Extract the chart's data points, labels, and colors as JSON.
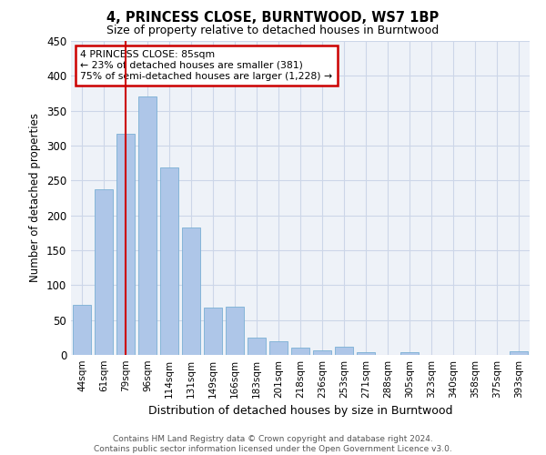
{
  "title1": "4, PRINCESS CLOSE, BURNTWOOD, WS7 1BP",
  "title2": "Size of property relative to detached houses in Burntwood",
  "xlabel": "Distribution of detached houses by size in Burntwood",
  "ylabel": "Number of detached properties",
  "categories": [
    "44sqm",
    "61sqm",
    "79sqm",
    "96sqm",
    "114sqm",
    "131sqm",
    "149sqm",
    "166sqm",
    "183sqm",
    "201sqm",
    "218sqm",
    "236sqm",
    "253sqm",
    "271sqm",
    "288sqm",
    "305sqm",
    "323sqm",
    "340sqm",
    "358sqm",
    "375sqm",
    "393sqm"
  ],
  "values": [
    72,
    237,
    317,
    370,
    269,
    182,
    68,
    69,
    25,
    20,
    11,
    6,
    12,
    4,
    0,
    4,
    0,
    0,
    0,
    0,
    5
  ],
  "bar_color": "#aec6e8",
  "bar_edge_color": "#7aafd4",
  "grid_color": "#ccd6e8",
  "background_color": "#eef2f8",
  "vline_x": 2,
  "vline_color": "#cc0000",
  "annotation_line1": "4 PRINCESS CLOSE: 85sqm",
  "annotation_line2": "← 23% of detached houses are smaller (381)",
  "annotation_line3": "75% of semi-detached houses are larger (1,228) →",
  "annotation_box_color": "#cc0000",
  "footer": "Contains HM Land Registry data © Crown copyright and database right 2024.\nContains public sector information licensed under the Open Government Licence v3.0.",
  "ylim": [
    0,
    450
  ],
  "yticks": [
    0,
    50,
    100,
    150,
    200,
    250,
    300,
    350,
    400,
    450
  ]
}
